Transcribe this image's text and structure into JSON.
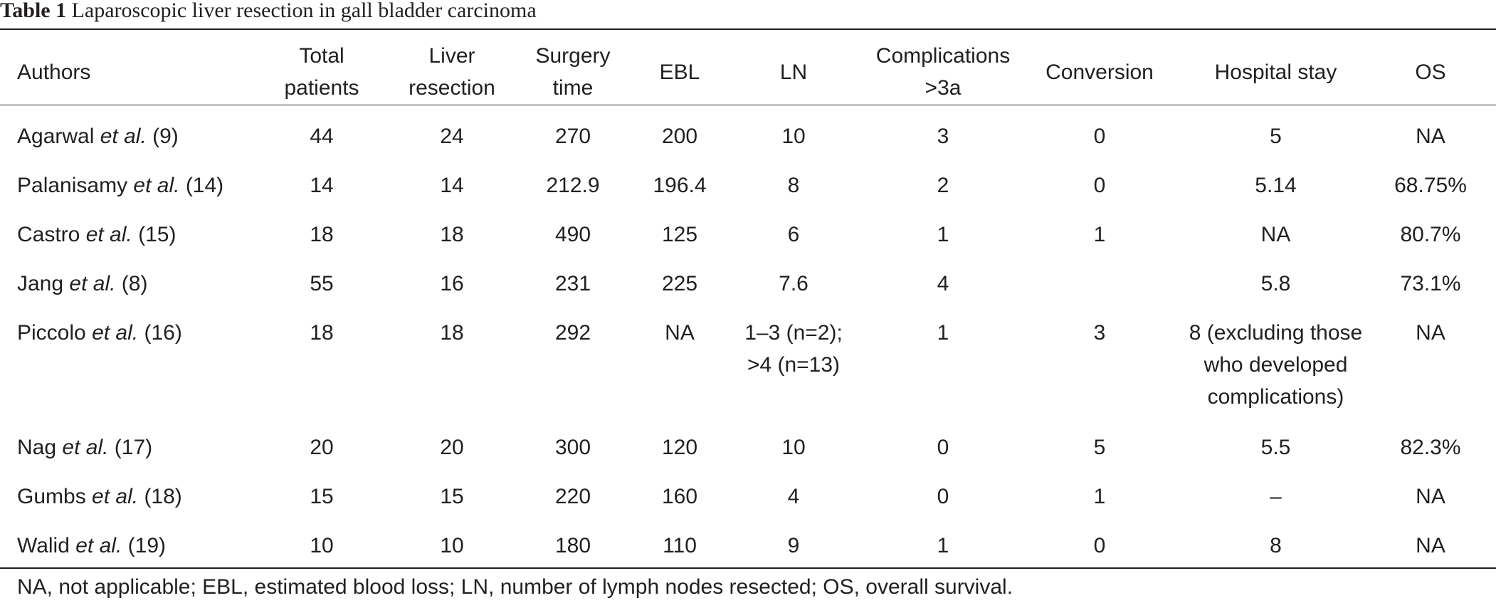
{
  "caption": {
    "label": "Table 1",
    "title": "Laparoscopic liver resection in gall bladder carcinoma"
  },
  "headers": {
    "authors": "Authors",
    "total_patients": [
      "Total",
      "patients"
    ],
    "liver_resection": [
      "Liver",
      "resection"
    ],
    "surgery_time": [
      "Surgery",
      "time"
    ],
    "ebl": "EBL",
    "ln": "LN",
    "complications": [
      "Complications",
      ">3a"
    ],
    "conversion": "Conversion",
    "hospital_stay": "Hospital stay",
    "os": "OS"
  },
  "rows": [
    {
      "author": "Agarwal",
      "etal": "et al.",
      "ref": "(9)",
      "total": "44",
      "liver": "24",
      "surgery": "270",
      "ebl": "200",
      "ln": [
        "10"
      ],
      "comp": "3",
      "conv": "0",
      "stay": [
        "5"
      ],
      "os": "NA"
    },
    {
      "author": "Palanisamy",
      "etal": "et al.",
      "ref": "(14)",
      "total": "14",
      "liver": "14",
      "surgery": "212.9",
      "ebl": "196.4",
      "ln": [
        "8"
      ],
      "comp": "2",
      "conv": "0",
      "stay": [
        "5.14"
      ],
      "os": "68.75%"
    },
    {
      "author": "Castro",
      "etal": "et al.",
      "ref": "(15)",
      "total": "18",
      "liver": "18",
      "surgery": "490",
      "ebl": "125",
      "ln": [
        "6"
      ],
      "comp": "1",
      "conv": "1",
      "stay": [
        "NA"
      ],
      "os": "80.7%"
    },
    {
      "author": "Jang",
      "etal": "et al.",
      "ref": "(8)",
      "total": "55",
      "liver": "16",
      "surgery": "231",
      "ebl": "225",
      "ln": [
        "7.6"
      ],
      "comp": "4",
      "conv": "",
      "stay": [
        "5.8"
      ],
      "os": "73.1%"
    },
    {
      "author": "Piccolo",
      "etal": "et al.",
      "ref": "(16)",
      "total": "18",
      "liver": "18",
      "surgery": "292",
      "ebl": "NA",
      "ln": [
        "1–3 (n=2);",
        ">4 (n=13)"
      ],
      "comp": "1",
      "conv": "3",
      "stay": [
        "8 (excluding those",
        "who developed",
        "complications)"
      ],
      "os": "NA"
    },
    {
      "author": "Nag",
      "etal": "et al.",
      "ref": "(17)",
      "total": "20",
      "liver": "20",
      "surgery": "300",
      "ebl": "120",
      "ln": [
        "10"
      ],
      "comp": "0",
      "conv": "5",
      "stay": [
        "5.5"
      ],
      "os": "82.3%"
    },
    {
      "author": "Gumbs",
      "etal": "et al.",
      "ref": "(18)",
      "total": "15",
      "liver": "15",
      "surgery": "220",
      "ebl": "160",
      "ln": [
        "4"
      ],
      "comp": "0",
      "conv": "1",
      "stay": [
        "–"
      ],
      "os": "NA"
    },
    {
      "author": "Walid",
      "etal": "et al.",
      "ref": "(19)",
      "total": "10",
      "liver": "10",
      "surgery": "180",
      "ebl": "110",
      "ln": [
        "9"
      ],
      "comp": "1",
      "conv": "0",
      "stay": [
        "8"
      ],
      "os": "NA"
    }
  ],
  "footnote": "NA, not applicable; EBL, estimated blood loss; LN, number of lymph nodes resected; OS, overall survival."
}
